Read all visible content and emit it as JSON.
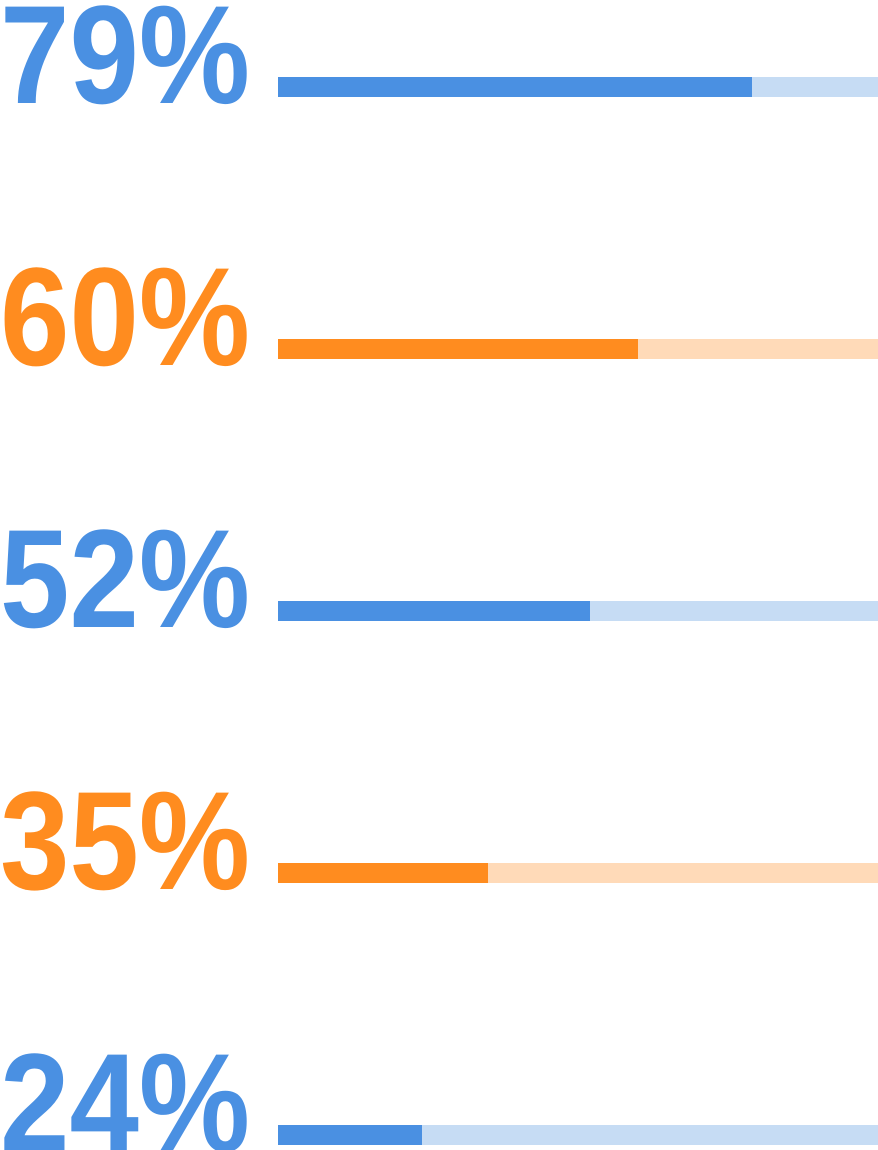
{
  "chart_data": {
    "type": "progress",
    "values": [
      79,
      60,
      52,
      35,
      24
    ],
    "value_labels": [
      "79%",
      "60%",
      "52%",
      "35%",
      "24%"
    ],
    "colors": [
      "#4a90e2",
      "#ff8c1f",
      "#4a90e2",
      "#ff8c1f",
      "#4a90e2"
    ],
    "track_colors": [
      "#c6dcf4",
      "#ffdab8",
      "#c6dcf4",
      "#ffdab8",
      "#c6dcf4"
    ],
    "xlim": [
      0,
      100
    ]
  }
}
